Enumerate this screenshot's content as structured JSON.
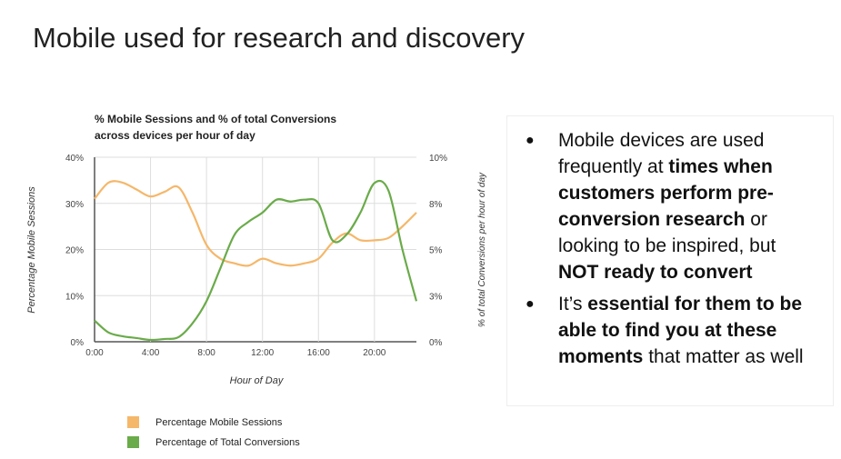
{
  "slide_title": "Mobile used for research and discovery",
  "chart_data": {
    "type": "line",
    "title_line1": "% Mobile Sessions and % of total Conversions",
    "title_line2": "across devices per hour of day",
    "xlabel": "Hour of Day",
    "ylabel": "Percentage Mobile Sessions",
    "y2label": "% of total Conversions per hour of day",
    "x": [
      0,
      1,
      2,
      3,
      4,
      5,
      6,
      7,
      8,
      9,
      10,
      11,
      12,
      13,
      14,
      15,
      16,
      17,
      18,
      19,
      20,
      21,
      22,
      23
    ],
    "x_ticks": [
      "0:00",
      "4:00",
      "8:00",
      "12:00",
      "16:00",
      "20:00"
    ],
    "y_ticks": [
      "0%",
      "10%",
      "20%",
      "30%",
      "40%"
    ],
    "y2_ticks": [
      "0%",
      "3%",
      "5%",
      "8%",
      "10%"
    ],
    "ylim": [
      0,
      40
    ],
    "y2lim": [
      0,
      10
    ],
    "series": [
      {
        "name": "Percentage Mobile Sessions",
        "axis": "left",
        "color": "#f5b76a",
        "values": [
          31,
          34.5,
          34.5,
          33,
          31.5,
          32.5,
          33.5,
          28,
          21,
          18,
          17,
          16.5,
          18,
          17,
          16.5,
          17,
          18,
          21.5,
          23.5,
          22,
          22,
          22.5,
          25,
          28
        ]
      },
      {
        "name": "Percentage of Total Conversions",
        "axis": "right",
        "color": "#6aab4a",
        "values": [
          1.15,
          0.5,
          0.3,
          0.2,
          0.1,
          0.15,
          0.25,
          1.0,
          2.2,
          4.0,
          5.8,
          6.5,
          7.0,
          7.7,
          7.6,
          7.7,
          7.5,
          5.5,
          5.8,
          7.0,
          8.6,
          8.2,
          5.0,
          2.2
        ]
      }
    ]
  },
  "bullets": [
    {
      "parts": [
        {
          "t": "Mobile devices are used frequently at "
        },
        {
          "t": "times when customers perform pre-conversion research",
          "b": true
        },
        {
          "t": " or looking to be inspired, but "
        },
        {
          "t": "NOT ready to convert",
          "b": true
        }
      ]
    },
    {
      "parts": [
        {
          "t": "It’s "
        },
        {
          "t": "essential for them to be able to find you at these moments",
          "b": true
        },
        {
          "t": " that matter as well"
        }
      ]
    }
  ]
}
